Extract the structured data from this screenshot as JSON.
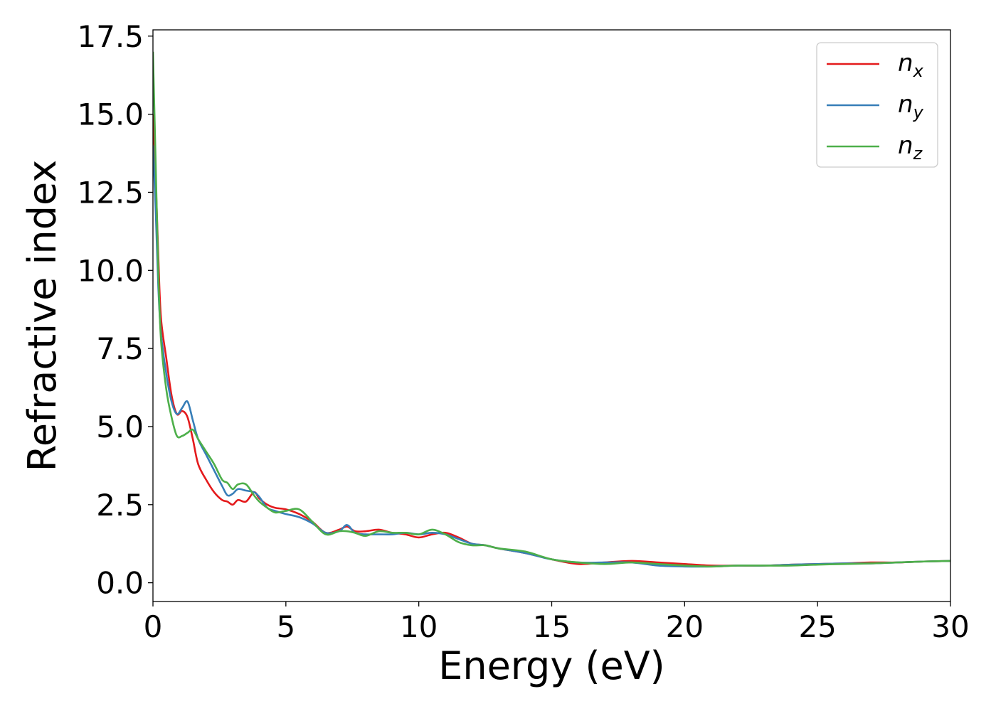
{
  "chart_data": {
    "type": "line",
    "title": "",
    "xlabel": "Energy (eV)",
    "ylabel": "Refractive index",
    "xlim": [
      0,
      30
    ],
    "ylim": [
      -0.6,
      17.7
    ],
    "xticks": [
      0,
      5,
      10,
      15,
      20,
      25,
      30
    ],
    "yticks": [
      0.0,
      2.5,
      5.0,
      7.5,
      10.0,
      12.5,
      15.0,
      17.5
    ],
    "xtick_labels": [
      "0",
      "5",
      "10",
      "15",
      "20",
      "25",
      "30"
    ],
    "ytick_labels": [
      "0.0",
      "2.5",
      "5.0",
      "7.5",
      "10.0",
      "12.5",
      "15.0",
      "17.5"
    ],
    "grid": false,
    "legend_position": "top-right",
    "series": [
      {
        "name": "n",
        "subscript": "x",
        "color": "#e41a1c",
        "x": [
          0,
          0.1,
          0.2,
          0.3,
          0.5,
          0.7,
          0.9,
          1.1,
          1.3,
          1.5,
          1.7,
          2.0,
          2.3,
          2.6,
          2.8,
          3.0,
          3.2,
          3.5,
          3.8,
          4.0,
          4.3,
          4.6,
          5.0,
          5.5,
          6.0,
          6.5,
          7.0,
          7.3,
          7.6,
          8.0,
          8.5,
          9.0,
          9.5,
          10.0,
          10.5,
          11.0,
          11.5,
          12.0,
          12.5,
          13.0,
          14.0,
          15.0,
          16.0,
          17.0,
          18.0,
          19.0,
          20.0,
          21.0,
          22.0,
          23.0,
          24.0,
          25.0,
          26.0,
          27.0,
          28.0,
          29.0,
          30.0
        ],
        "y": [
          15.0,
          13.0,
          10.5,
          8.5,
          7.2,
          6.0,
          5.4,
          5.5,
          5.3,
          4.6,
          3.8,
          3.3,
          2.9,
          2.65,
          2.6,
          2.5,
          2.65,
          2.6,
          2.9,
          2.7,
          2.5,
          2.4,
          2.35,
          2.2,
          1.95,
          1.6,
          1.7,
          1.8,
          1.65,
          1.65,
          1.7,
          1.6,
          1.55,
          1.45,
          1.55,
          1.6,
          1.45,
          1.25,
          1.2,
          1.1,
          0.95,
          0.75,
          0.6,
          0.65,
          0.7,
          0.65,
          0.6,
          0.55,
          0.55,
          0.55,
          0.58,
          0.6,
          0.62,
          0.65,
          0.65,
          0.68,
          0.7
        ]
      },
      {
        "name": "n",
        "subscript": "y",
        "color": "#377eb8",
        "x": [
          0,
          0.1,
          0.2,
          0.3,
          0.5,
          0.7,
          0.9,
          1.1,
          1.3,
          1.5,
          1.7,
          2.0,
          2.3,
          2.6,
          2.8,
          3.0,
          3.2,
          3.5,
          3.8,
          4.0,
          4.3,
          4.6,
          5.0,
          5.5,
          6.0,
          6.5,
          7.0,
          7.3,
          7.6,
          8.0,
          8.5,
          9.0,
          9.5,
          10.0,
          10.5,
          11.0,
          11.5,
          12.0,
          12.5,
          13.0,
          14.0,
          15.0,
          16.0,
          17.0,
          18.0,
          19.0,
          20.0,
          21.0,
          22.0,
          23.0,
          24.0,
          25.0,
          26.0,
          27.0,
          28.0,
          29.0,
          30.0
        ],
        "y": [
          14.0,
          12.0,
          9.5,
          8.0,
          6.7,
          5.8,
          5.4,
          5.6,
          5.8,
          5.2,
          4.6,
          4.1,
          3.6,
          3.1,
          2.8,
          2.85,
          3.0,
          2.95,
          2.9,
          2.75,
          2.4,
          2.3,
          2.2,
          2.1,
          1.9,
          1.6,
          1.65,
          1.85,
          1.6,
          1.55,
          1.55,
          1.55,
          1.6,
          1.55,
          1.6,
          1.55,
          1.4,
          1.25,
          1.2,
          1.1,
          0.95,
          0.75,
          0.65,
          0.65,
          0.65,
          0.55,
          0.52,
          0.52,
          0.55,
          0.55,
          0.58,
          0.6,
          0.62,
          0.62,
          0.65,
          0.68,
          0.7
        ]
      },
      {
        "name": "n",
        "subscript": "z",
        "color": "#4daf4a",
        "x": [
          0,
          0.1,
          0.2,
          0.3,
          0.5,
          0.7,
          0.9,
          1.1,
          1.3,
          1.5,
          1.7,
          2.0,
          2.3,
          2.6,
          2.8,
          3.0,
          3.2,
          3.5,
          3.8,
          4.0,
          4.3,
          4.6,
          5.0,
          5.5,
          6.0,
          6.5,
          7.0,
          7.3,
          7.6,
          8.0,
          8.5,
          9.0,
          9.5,
          10.0,
          10.5,
          11.0,
          11.5,
          12.0,
          12.5,
          13.0,
          14.0,
          15.0,
          16.0,
          17.0,
          18.0,
          19.0,
          20.0,
          21.0,
          22.0,
          23.0,
          24.0,
          25.0,
          26.0,
          27.0,
          28.0,
          29.0,
          30.0
        ],
        "y": [
          17.0,
          13.5,
          10.0,
          7.8,
          6.2,
          5.3,
          4.7,
          4.7,
          4.8,
          4.9,
          4.6,
          4.2,
          3.8,
          3.3,
          3.2,
          3.0,
          3.15,
          3.15,
          2.8,
          2.6,
          2.4,
          2.25,
          2.3,
          2.35,
          1.95,
          1.55,
          1.65,
          1.65,
          1.6,
          1.5,
          1.65,
          1.6,
          1.6,
          1.55,
          1.7,
          1.55,
          1.3,
          1.2,
          1.2,
          1.1,
          1.0,
          0.75,
          0.65,
          0.6,
          0.65,
          0.6,
          0.55,
          0.52,
          0.55,
          0.55,
          0.55,
          0.58,
          0.6,
          0.62,
          0.65,
          0.68,
          0.7
        ]
      }
    ]
  }
}
